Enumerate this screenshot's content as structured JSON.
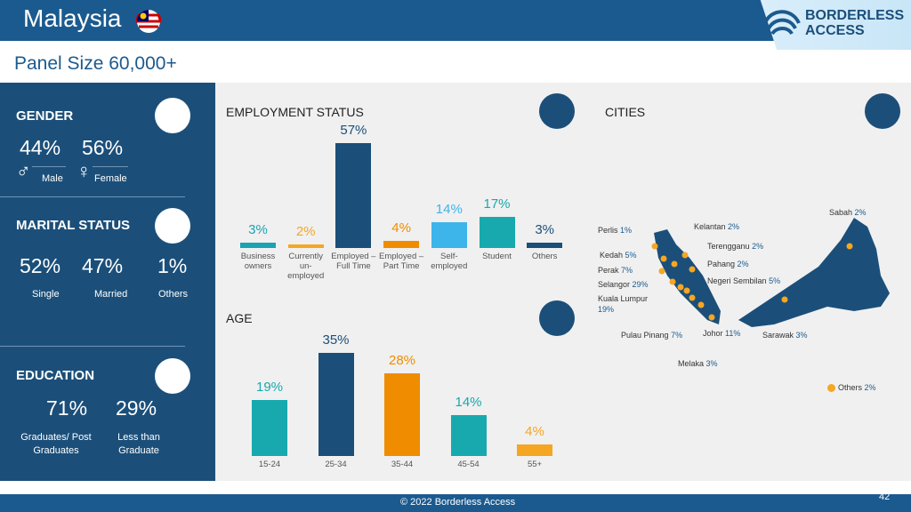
{
  "header": {
    "title": "Malaysia",
    "logo": "BORDERLESS ACCESS",
    "subtitle": "Panel Size 60,000+"
  },
  "gender": {
    "title": "GENDER",
    "items": [
      {
        "value": "44%",
        "label": "Male"
      },
      {
        "value": "56%",
        "label": "Female"
      }
    ]
  },
  "marital": {
    "title": "MARITAL STATUS",
    "items": [
      {
        "value": "52%",
        "label": "Single"
      },
      {
        "value": "47%",
        "label": "Married"
      },
      {
        "value": "1%",
        "label": "Others"
      }
    ]
  },
  "education": {
    "title": "EDUCATION",
    "items": [
      {
        "value": "71%",
        "label": "Graduates/ Post Graduates"
      },
      {
        "value": "29%",
        "label": "Less than Graduate"
      }
    ]
  },
  "chart_data": [
    {
      "type": "bar",
      "title": "EMPLOYMENT STATUS",
      "categories": [
        "Business owners",
        "Currently un-employed",
        "Employed – Full Time",
        "Employed – Part Time",
        "Self-employed",
        "Student",
        "Others"
      ],
      "values": [
        3,
        2,
        57,
        4,
        14,
        17,
        3
      ],
      "value_labels": [
        "3%",
        "2%",
        "57%",
        "4%",
        "14%",
        "17%",
        "3%"
      ],
      "colors": [
        "#1aa3b3",
        "#f5a623",
        "#1b4f7a",
        "#f08c00",
        "#3db4ea",
        "#17a9ad",
        "#1b4f7a"
      ]
    },
    {
      "type": "bar",
      "title": "AGE",
      "categories": [
        "15-24",
        "25-34",
        "35-44",
        "45-54",
        "55+"
      ],
      "values": [
        19,
        35,
        28,
        14,
        4
      ],
      "value_labels": [
        "19%",
        "35%",
        "28%",
        "14%",
        "4%"
      ],
      "colors": [
        "#17a9ad",
        "#1b4f7a",
        "#f08c00",
        "#17a9ad",
        "#f5a623"
      ]
    }
  ],
  "cities": {
    "title": "CITIES",
    "items": [
      {
        "name": "Perlis",
        "share": "1%"
      },
      {
        "name": "Kedah",
        "share": "5%"
      },
      {
        "name": "Perak",
        "share": "7%"
      },
      {
        "name": "Selangor",
        "share": "29%"
      },
      {
        "name": "Kuala Lumpur",
        "share": "19%"
      },
      {
        "name": "Kelantan",
        "share": "2%"
      },
      {
        "name": "Terengganu",
        "share": "2%"
      },
      {
        "name": "Pahang",
        "share": "2%"
      },
      {
        "name": "Negeri Sembilan",
        "share": "5%"
      },
      {
        "name": "Pulau Pinang",
        "share": "7%"
      },
      {
        "name": "Johor",
        "share": "11%"
      },
      {
        "name": "Sarawak",
        "share": "3%"
      },
      {
        "name": "Melaka",
        "share": "3%"
      },
      {
        "name": "Sabah",
        "share": "2%"
      },
      {
        "name": "Others",
        "share": "2%"
      }
    ]
  },
  "footer": {
    "copyright": "© 2022 Borderless Access",
    "page": "42"
  }
}
